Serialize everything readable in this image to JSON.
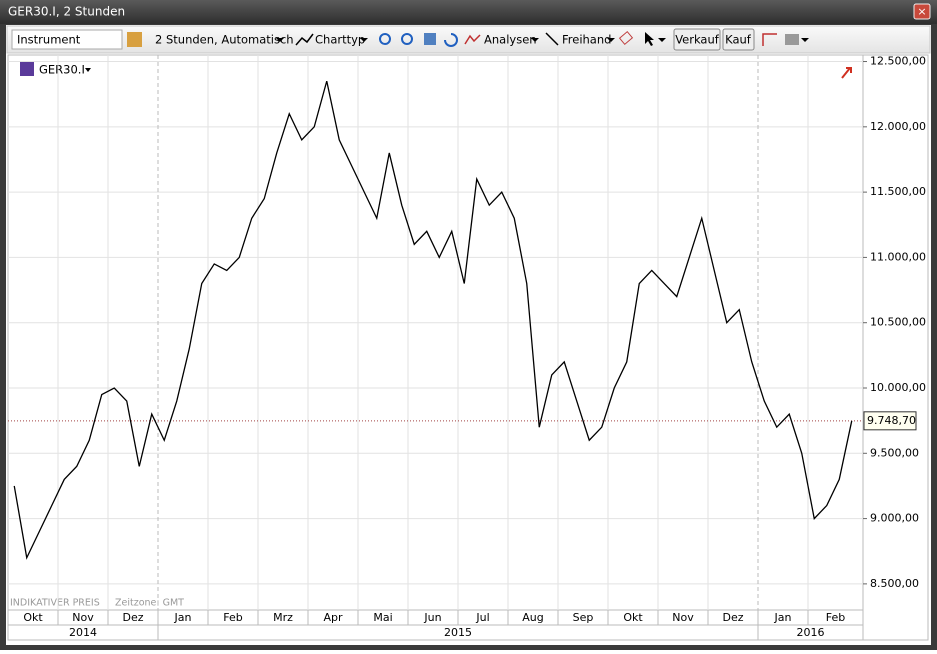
{
  "window": {
    "title": "GER30.I, 2 Stunden"
  },
  "toolbar": {
    "instrument_placeholder": "Instrument",
    "timeframe": "2 Stunden,  Automatisch",
    "chart_type": "Charttyp",
    "analyses": "Analysen",
    "freehand": "Freihand",
    "sell": "Verkauf",
    "buy": "Kauf"
  },
  "instrument": "GER30.I",
  "footer": {
    "price_note": "INDIKATIVER PREIS",
    "timezone": "Zeitzone: GMT"
  },
  "chart_data": {
    "type": "line",
    "categories": [
      "Okt",
      null,
      null,
      null,
      "Nov",
      null,
      null,
      null,
      "Dez",
      null,
      null,
      null,
      "Jan",
      null,
      null,
      null,
      "Feb",
      null,
      null,
      null,
      "Mrz",
      null,
      null,
      null,
      "Apr",
      null,
      null,
      null,
      "Mai",
      null,
      null,
      null,
      "Jun",
      null,
      null,
      null,
      "Jul",
      null,
      null,
      null,
      "Aug",
      null,
      null,
      null,
      "Sep",
      null,
      null,
      null,
      "Okt",
      null,
      null,
      null,
      "Nov",
      null,
      null,
      null,
      "Dez",
      null,
      null,
      null,
      "Jan",
      null,
      null,
      null,
      "Feb",
      null,
      null,
      null
    ],
    "category_groups": [
      "2014",
      "2014",
      "2014",
      "2014",
      "2014",
      "2014",
      "2014",
      "2014",
      "2014",
      "2014",
      "2014",
      "2014",
      "2015",
      "2015",
      "2015",
      "2015",
      "2015",
      "2015",
      "2015",
      "2015",
      "2015",
      "2015",
      "2015",
      "2015",
      "2015",
      "2015",
      "2015",
      "2015",
      "2015",
      "2015",
      "2015",
      "2015",
      "2015",
      "2015",
      "2015",
      "2015",
      "2015",
      "2015",
      "2015",
      "2015",
      "2015",
      "2015",
      "2015",
      "2015",
      "2015",
      "2015",
      "2015",
      "2015",
      "2015",
      "2015",
      "2015",
      "2015",
      "2015",
      "2015",
      "2015",
      "2015",
      "2015",
      "2015",
      "2015",
      "2015",
      "2016",
      "2016",
      "2016",
      "2016",
      "2016",
      "2016",
      "2016",
      "2016"
    ],
    "series": [
      {
        "name": "GER30.I",
        "color": "#000000",
        "values": [
          9250,
          8700,
          8900,
          9100,
          9300,
          9400,
          9600,
          9950,
          10000,
          9900,
          9400,
          9800,
          9600,
          9900,
          10300,
          10800,
          10950,
          10900,
          11000,
          11300,
          11450,
          11800,
          12100,
          11900,
          12000,
          12350,
          11900,
          11700,
          11500,
          11300,
          11800,
          11400,
          11100,
          11200,
          11000,
          11200,
          10800,
          11600,
          11400,
          11500,
          11300,
          10800,
          9700,
          10100,
          10200,
          9900,
          9600,
          9700,
          10000,
          10200,
          10800,
          10900,
          10800,
          10700,
          11000,
          11300,
          10900,
          10500,
          10600,
          10200,
          9900,
          9700,
          9800,
          9500,
          9000,
          9100,
          9300,
          9748.7
        ]
      }
    ],
    "last_price": {
      "value": 9748.7,
      "label": "9.748,70"
    },
    "ylim": [
      8300,
      12550
    ],
    "yticks": [
      {
        "value": 8500,
        "label": "8.500,00"
      },
      {
        "value": 9000,
        "label": "9.000,00"
      },
      {
        "value": 9500,
        "label": "9.500,00"
      },
      {
        "value": 10000,
        "label": "10.000,00"
      },
      {
        "value": 10500,
        "label": "10.500,00"
      },
      {
        "value": 11000,
        "label": "11.000,00"
      },
      {
        "value": 11500,
        "label": "11.500,00"
      },
      {
        "value": 12000,
        "label": "12.000,00"
      },
      {
        "value": 12500,
        "label": "12.500,00"
      }
    ],
    "grid": true
  }
}
